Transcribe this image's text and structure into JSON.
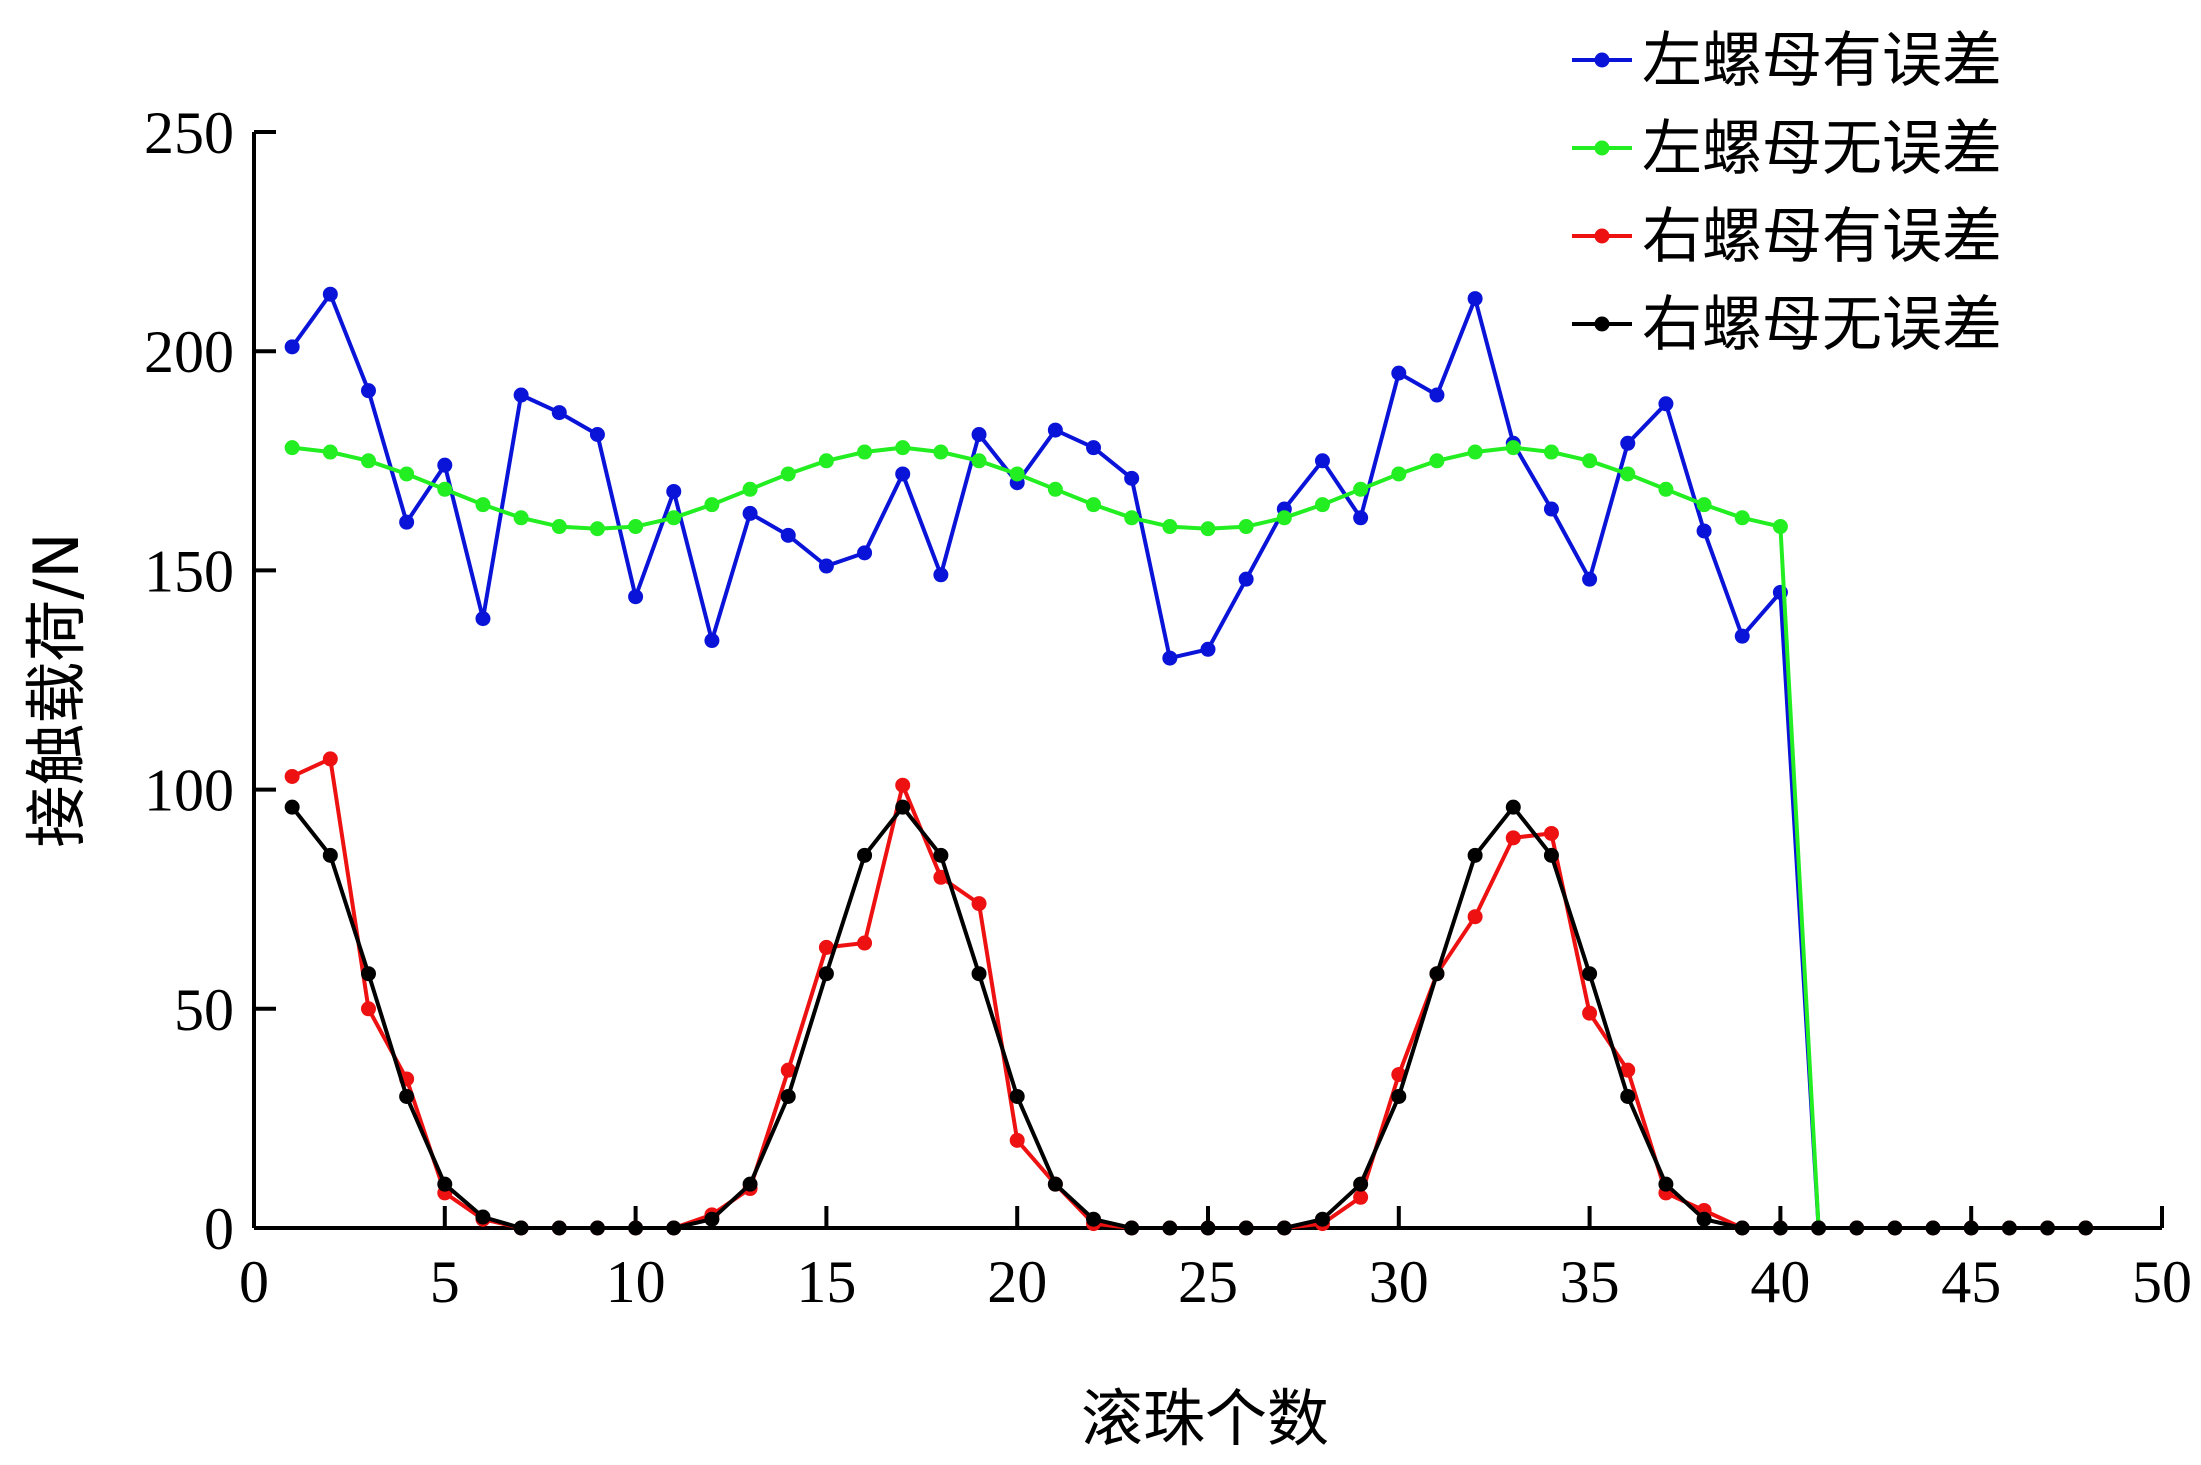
{
  "chart_data": {
    "type": "line",
    "xlabel": "滚珠个数",
    "ylabel": "接触载荷/N",
    "xlim": [
      0,
      50
    ],
    "ylim": [
      0,
      250
    ],
    "xticks": [
      0,
      5,
      10,
      15,
      20,
      25,
      30,
      35,
      40,
      45,
      50
    ],
    "yticks": [
      0,
      50,
      100,
      150,
      200,
      250
    ],
    "grid": false,
    "legend_position": "top-right",
    "series": [
      {
        "name": "左螺母有误差",
        "color": "#0a14d8",
        "x": [
          1,
          2,
          3,
          4,
          5,
          6,
          7,
          8,
          9,
          10,
          11,
          12,
          13,
          14,
          15,
          16,
          17,
          18,
          19,
          20,
          21,
          22,
          23,
          24,
          25,
          26,
          27,
          28,
          29,
          30,
          31,
          32,
          33,
          34,
          35,
          36,
          37,
          38,
          39,
          40,
          41
        ],
        "y": [
          201,
          213,
          191,
          161,
          174,
          139,
          190,
          186,
          181,
          144,
          168,
          134,
          163,
          158,
          151,
          154,
          172,
          149,
          181,
          170,
          182,
          178,
          171,
          130,
          132,
          148,
          164,
          175,
          162,
          195,
          190,
          212,
          179,
          164,
          148,
          179,
          188,
          159,
          135,
          145,
          0
        ]
      },
      {
        "name": "左螺母无误差",
        "color": "#22ee22",
        "x": [
          1,
          2,
          3,
          4,
          5,
          6,
          7,
          8,
          9,
          10,
          11,
          12,
          13,
          14,
          15,
          16,
          17,
          18,
          19,
          20,
          21,
          22,
          23,
          24,
          25,
          26,
          27,
          28,
          29,
          30,
          31,
          32,
          33,
          34,
          35,
          36,
          37,
          38,
          39,
          40,
          41
        ],
        "y": [
          178,
          177,
          175,
          172,
          168.5,
          165,
          162,
          160,
          159.5,
          160,
          162,
          165,
          168.5,
          172,
          175,
          177,
          178,
          177,
          175,
          172,
          168.5,
          165,
          162,
          160,
          159.5,
          160,
          162,
          165,
          168.5,
          172,
          175,
          177,
          178,
          177,
          175,
          172,
          168.5,
          165,
          162,
          160,
          0
        ]
      },
      {
        "name": "右螺母有误差",
        "color": "#ee1111",
        "x": [
          1,
          2,
          3,
          4,
          5,
          6,
          7,
          8,
          9,
          10,
          11,
          12,
          13,
          14,
          15,
          16,
          17,
          18,
          19,
          20,
          21,
          22,
          23,
          24,
          25,
          26,
          27,
          28,
          29,
          30,
          31,
          32,
          33,
          34,
          35,
          36,
          37,
          38,
          39,
          40,
          41,
          42,
          43,
          44,
          45,
          46,
          47,
          48
        ],
        "y": [
          103,
          107,
          50,
          34,
          8,
          2,
          0,
          0,
          0,
          0,
          0,
          3,
          9,
          36,
          64,
          65,
          101,
          80,
          74,
          20,
          10,
          1,
          0,
          0,
          0,
          0,
          0,
          1,
          7,
          35,
          58,
          71,
          89,
          90,
          49,
          36,
          8,
          4,
          0,
          0,
          0,
          0,
          0,
          0,
          0,
          0,
          0,
          0
        ]
      },
      {
        "name": "右螺母无误差",
        "color": "#000000",
        "x": [
          1,
          2,
          3,
          4,
          5,
          6,
          7,
          8,
          9,
          10,
          11,
          12,
          13,
          14,
          15,
          16,
          17,
          18,
          19,
          20,
          21,
          22,
          23,
          24,
          25,
          26,
          27,
          28,
          29,
          30,
          31,
          32,
          33,
          34,
          35,
          36,
          37,
          38,
          39,
          40,
          41,
          42,
          43,
          44,
          45,
          46,
          47,
          48
        ],
        "y": [
          96,
          85,
          58,
          30,
          10,
          2.5,
          0,
          0,
          0,
          0,
          0,
          2,
          10,
          30,
          58,
          85,
          96,
          85,
          58,
          30,
          10,
          2,
          0,
          0,
          0,
          0,
          0,
          2,
          10,
          30,
          58,
          85,
          96,
          85,
          58,
          30,
          10,
          2,
          0,
          0,
          0,
          0,
          0,
          0,
          0,
          0,
          0,
          0
        ]
      }
    ]
  }
}
